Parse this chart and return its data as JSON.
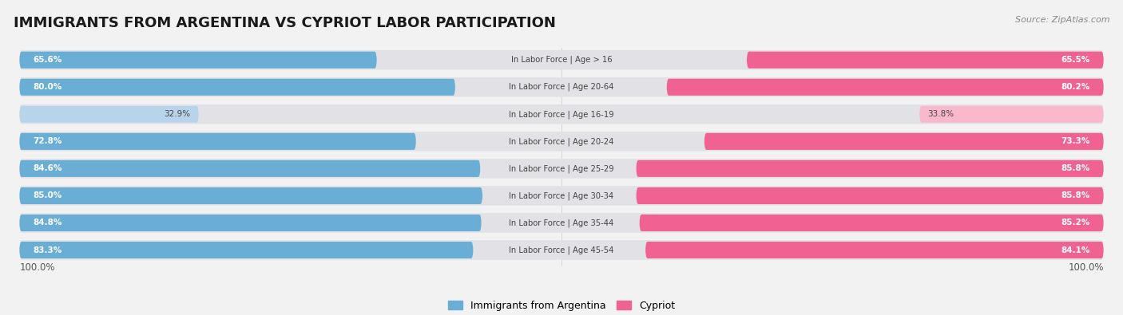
{
  "title": "IMMIGRANTS FROM ARGENTINA VS CYPRIOT LABOR PARTICIPATION",
  "source": "Source: ZipAtlas.com",
  "categories": [
    "In Labor Force | Age > 16",
    "In Labor Force | Age 20-64",
    "In Labor Force | Age 16-19",
    "In Labor Force | Age 20-24",
    "In Labor Force | Age 25-29",
    "In Labor Force | Age 30-34",
    "In Labor Force | Age 35-44",
    "In Labor Force | Age 45-54"
  ],
  "argentina_values": [
    65.6,
    80.0,
    32.9,
    72.8,
    84.6,
    85.0,
    84.8,
    83.3
  ],
  "cypriot_values": [
    65.5,
    80.2,
    33.8,
    73.3,
    85.8,
    85.8,
    85.2,
    84.1
  ],
  "argentina_color": "#6aaed6",
  "cypriot_color": "#f06292",
  "argentina_light_color": "#b8d4ea",
  "cypriot_light_color": "#f9b8cc",
  "background_color": "#f2f2f2",
  "bar_bg_color": "#e2e2e6",
  "row_bg_color": "#ffffff",
  "title_fontsize": 13,
  "label_fontsize": 8.0,
  "max_val": 100.0,
  "legend_argentina": "Immigrants from Argentina",
  "legend_cypriot": "Cypriot"
}
